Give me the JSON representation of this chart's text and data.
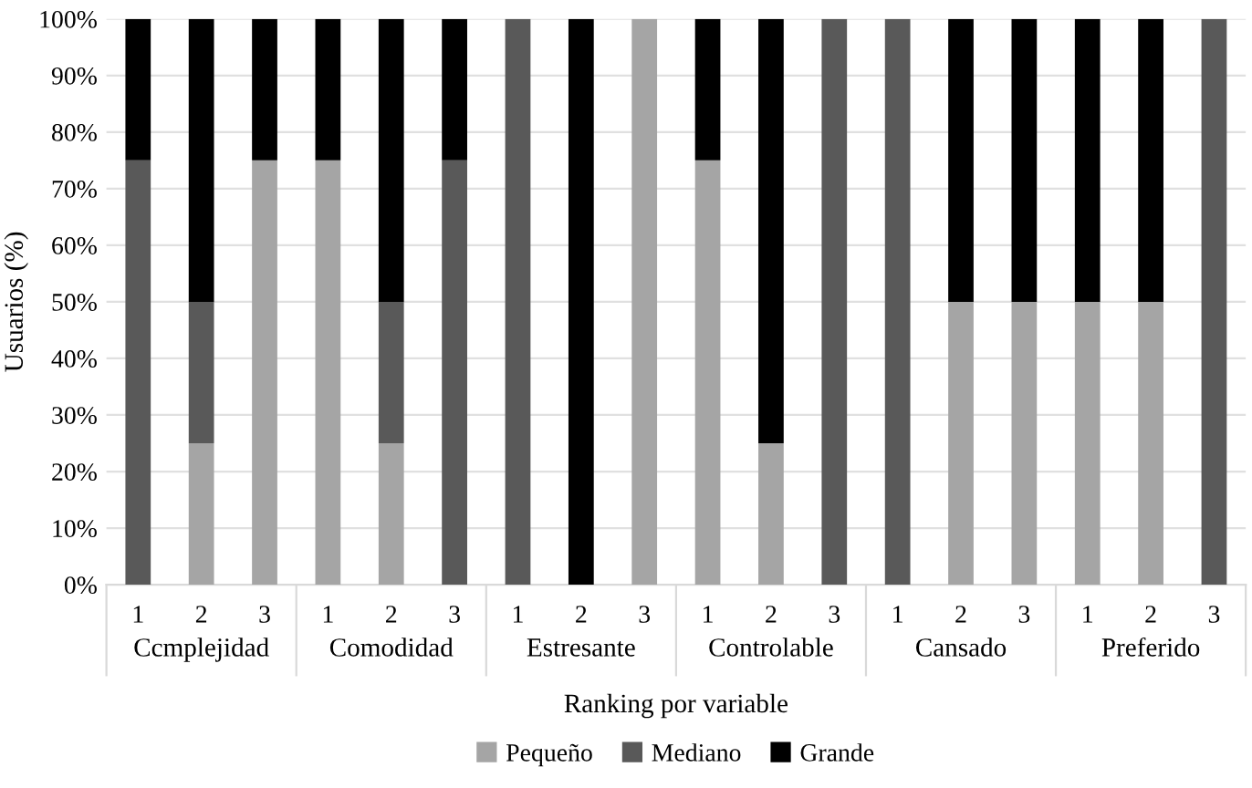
{
  "chart_data": {
    "type": "bar",
    "stacked": true,
    "xlabel": "Ranking por variable",
    "ylabel": "Usuarios (%)",
    "categories": [
      "1",
      "2",
      "3",
      "1",
      "2",
      "3",
      "1",
      "2",
      "3",
      "1",
      "2",
      "3",
      "1",
      "2",
      "3",
      "1",
      "2",
      "3"
    ],
    "annotations": [
      "Ccmplejidad",
      "Comodidad",
      "Estresante",
      "Controlable",
      "Cansado",
      "Preferido"
    ],
    "series": [
      {
        "name": "Pequeño",
        "color": "#a5a5a5",
        "values": [
          0,
          25,
          75,
          75,
          25,
          0,
          0,
          0,
          100,
          75,
          25,
          0,
          0,
          50,
          50,
          50,
          50,
          0
        ]
      },
      {
        "name": "Mediano",
        "color": "#595959",
        "values": [
          75,
          25,
          0,
          0,
          25,
          75,
          100,
          0,
          0,
          0,
          0,
          100,
          100,
          0,
          0,
          0,
          0,
          100
        ]
      },
      {
        "name": "Grande",
        "color": "#000000",
        "values": [
          25,
          50,
          25,
          25,
          50,
          25,
          0,
          100,
          0,
          25,
          75,
          0,
          0,
          50,
          50,
          50,
          50,
          0
        ]
      }
    ],
    "ylim": [
      0,
      100
    ],
    "yticks": [
      {
        "value": 0,
        "label": "0%"
      },
      {
        "value": 10,
        "label": "10%"
      },
      {
        "value": 20,
        "label": "20%"
      },
      {
        "value": 30,
        "label": "30%"
      },
      {
        "value": 40,
        "label": "40%"
      },
      {
        "value": 50,
        "label": "50%"
      },
      {
        "value": 60,
        "label": "60%"
      },
      {
        "value": 70,
        "label": "70%"
      },
      {
        "value": 80,
        "label": "80%"
      },
      {
        "value": 90,
        "label": "90%"
      },
      {
        "value": 100,
        "label": "100%"
      }
    ],
    "grid": "y",
    "legend": "bottom"
  }
}
